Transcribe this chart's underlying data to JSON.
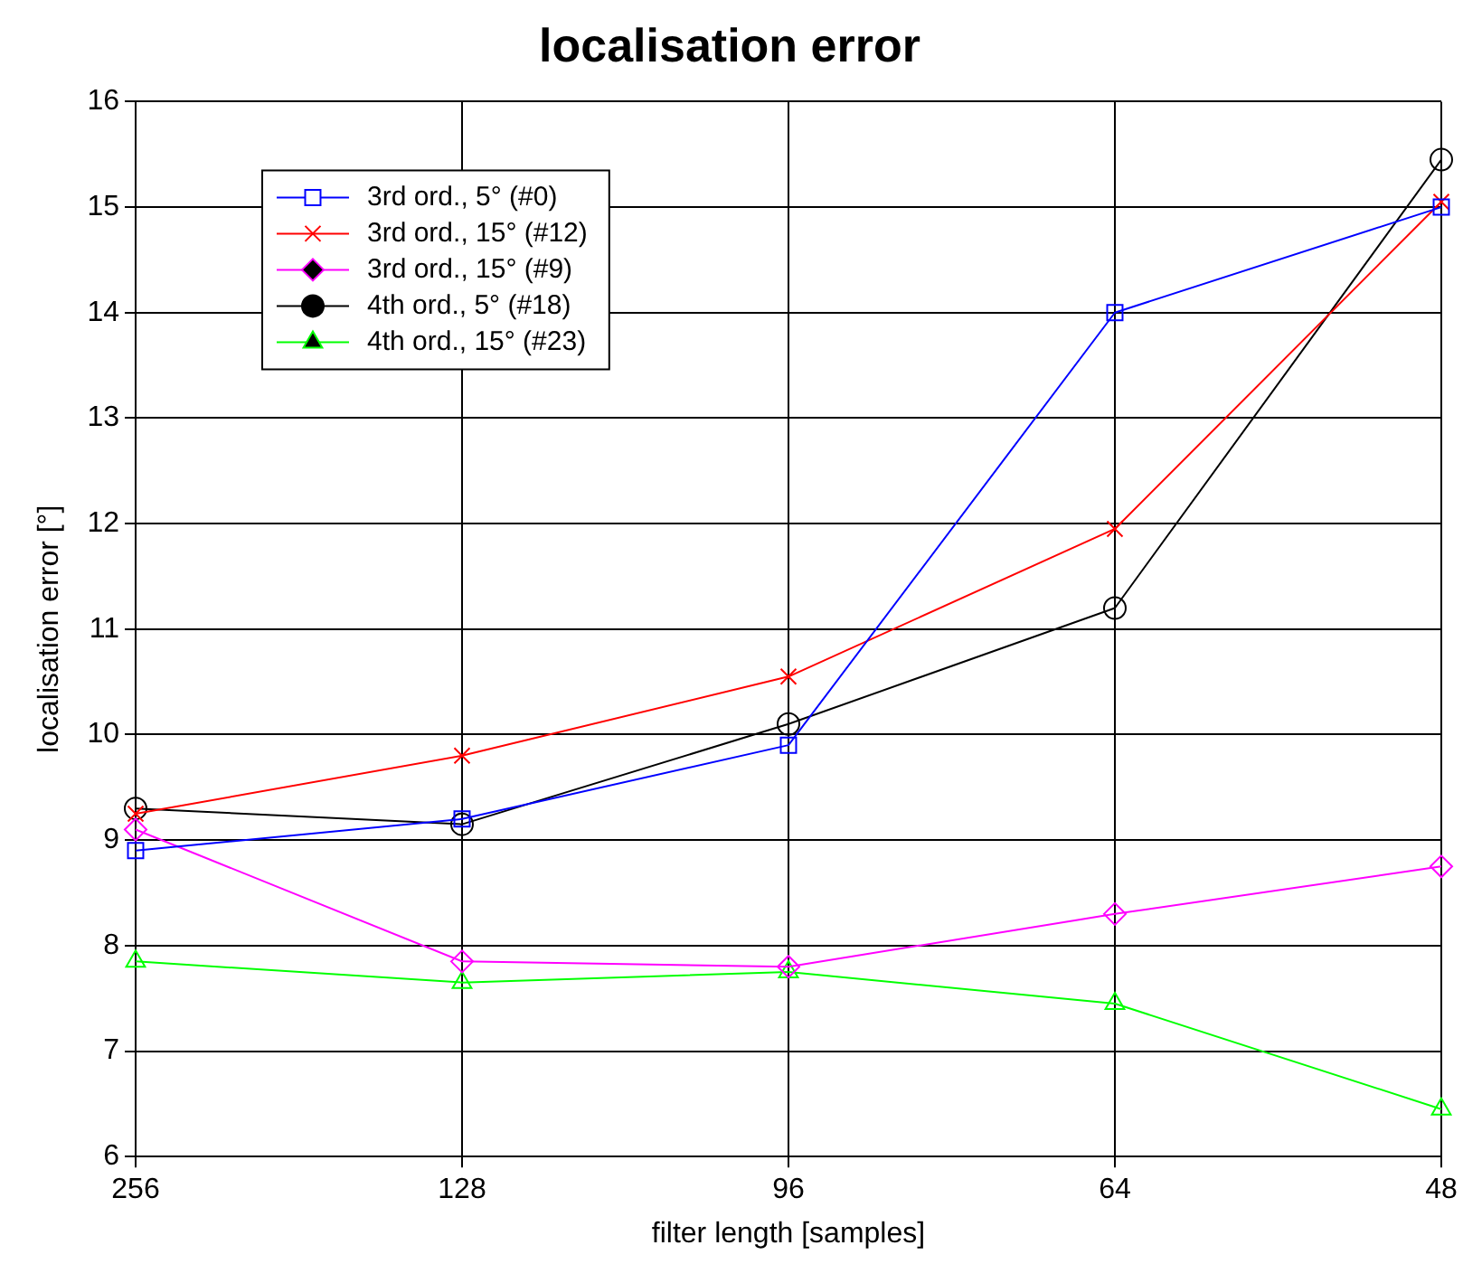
{
  "chart_data": {
    "type": "line",
    "title": "localisation error",
    "xlabel": "filter length [samples]",
    "ylabel": "localisation error [°]",
    "categories": [
      "256",
      "128",
      "96",
      "64",
      "48"
    ],
    "series": [
      {
        "name": "3rd ord., 5° (#0)",
        "color": "#0000ff",
        "marker": "square",
        "values": [
          8.9,
          9.2,
          9.9,
          14.0,
          15.0
        ]
      },
      {
        "name": "3rd ord., 15° (#12)",
        "color": "#ff0000",
        "marker": "cross",
        "values": [
          9.25,
          9.8,
          10.55,
          11.95,
          15.05
        ]
      },
      {
        "name": "3rd ord., 15° (#9)",
        "color": "#ff00ff",
        "marker": "diamond",
        "values": [
          9.1,
          7.85,
          7.8,
          8.3,
          8.75
        ]
      },
      {
        "name": "4th ord., 5° (#18)",
        "color": "#000000",
        "marker": "circle",
        "values": [
          9.3,
          9.15,
          10.1,
          11.2,
          15.45
        ]
      },
      {
        "name": "4th ord., 15° (#23)",
        "color": "#00ff00",
        "marker": "triangle",
        "values": [
          7.85,
          7.65,
          7.75,
          7.45,
          6.45
        ]
      }
    ],
    "ylim": [
      6,
      16
    ],
    "yticks": [
      6,
      7,
      8,
      9,
      10,
      11,
      12,
      13,
      14,
      15,
      16
    ],
    "grid": true,
    "legend": "top left",
    "line_style": "solid"
  }
}
